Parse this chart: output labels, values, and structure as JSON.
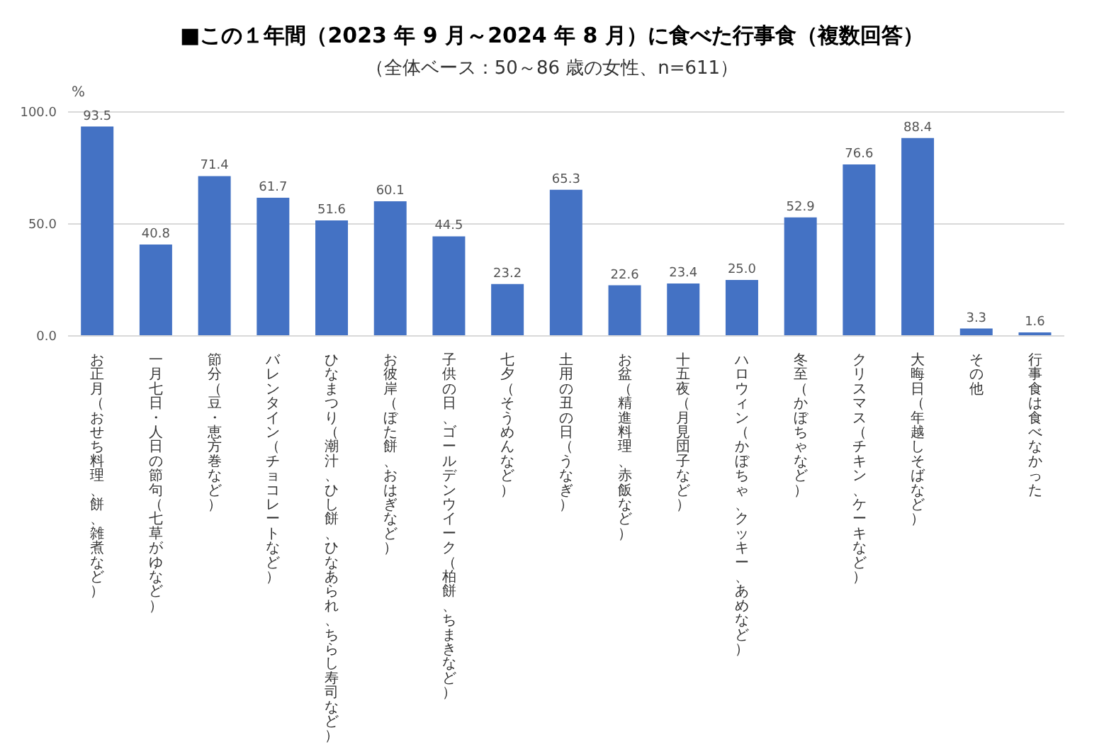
{
  "chart_data": {
    "type": "bar",
    "title": "■この１年間（2023 年 9 月～2024 年 8 月）に食べた行事食（複数回答）",
    "subtitle": "（全体ベース：50～86 歳の女性、n=611）",
    "ylabel": "%",
    "categories": [
      "お正月（おせち料理、餅、雑煮など）",
      "一月七日・人日の節句（七草がゆなど）",
      "節分（豆・恵方巻など）",
      "バレンタイン（チョコレートなど）",
      "ひなまつり（潮汁、ひし餅、ひなあられ、ちらし寿司など）",
      "お彼岸（ぼた餅、おはぎなど）",
      "子供の日、ゴールデンウイーク（柏餅、ちまきなど）",
      "七夕（そうめんなど）",
      "土用の丑の日（うなぎ）",
      "お盆（精進料理、赤飯など）",
      "十五夜（月見団子など）",
      "ハロウィン（かぼちゃ、クッキー、あめなど）",
      "冬至（かぼちゃなど）",
      "クリスマス（チキン、ケーキなど）",
      "大晦日（年越しそばなど）",
      "その他",
      "行事食は食べなかった"
    ],
    "values": [
      93.5,
      40.8,
      71.4,
      61.7,
      51.6,
      60.1,
      44.5,
      23.2,
      65.3,
      22.6,
      23.4,
      25.0,
      52.9,
      76.6,
      88.4,
      3.3,
      1.6
    ],
    "value_labels": [
      "93.5",
      "40.8",
      "71.4",
      "61.7",
      "51.6",
      "60.1",
      "44.5",
      "23.2",
      "65.3",
      "22.6",
      "23.4",
      "25.0",
      "52.9",
      "76.6",
      "88.4",
      "3.3",
      "1.6"
    ],
    "color": "#4472c4",
    "ylim": [
      0,
      100
    ],
    "yticks": [
      {
        "value": 0,
        "label": "0.0"
      },
      {
        "value": 50,
        "label": "50.0"
      },
      {
        "value": 100,
        "label": "100.0"
      }
    ],
    "grid": "y"
  }
}
